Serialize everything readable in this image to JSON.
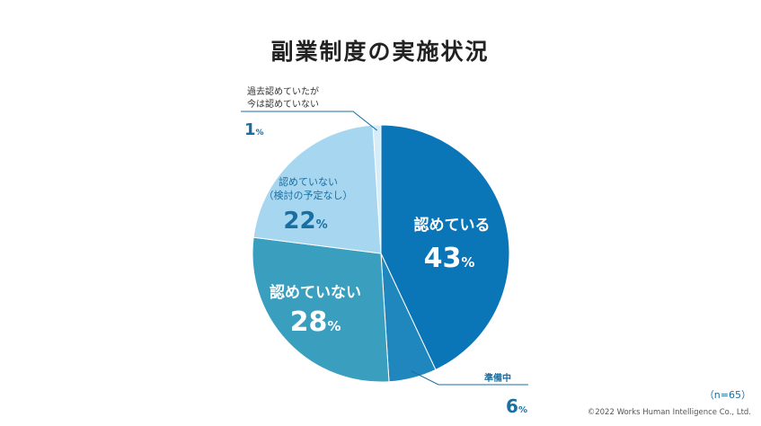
{
  "chart_data": {
    "type": "pie",
    "title": "副業制度の実施状況",
    "sample_note": "（n=65）",
    "copyright": "©2022 Works Human Intelligence Co., Ltd.",
    "slices": [
      {
        "label": "認めている",
        "value": 43,
        "color": "#0a75b7",
        "label_color": "#ffffff"
      },
      {
        "label": "準備中",
        "value": 6,
        "color": "#1f87bd",
        "label_color": "#1a6fa0"
      },
      {
        "label": "認めていない",
        "value": 28,
        "color": "#3a9fbe",
        "label_color": "#ffffff"
      },
      {
        "label": "認めていない（検討の予定なし）",
        "label_lines": [
          "認めていない",
          "（検討の予定なし）"
        ],
        "value": 22,
        "color": "#a6d6f0",
        "label_color": "#1a6fa0"
      },
      {
        "label": "過去認めていたが今は認めていない",
        "label_lines": [
          "過去認めていたが",
          "今は認めていない"
        ],
        "value": 1,
        "color": "#d6ecf8",
        "label_color": "#1a6fa0"
      }
    ],
    "unit": "%"
  }
}
